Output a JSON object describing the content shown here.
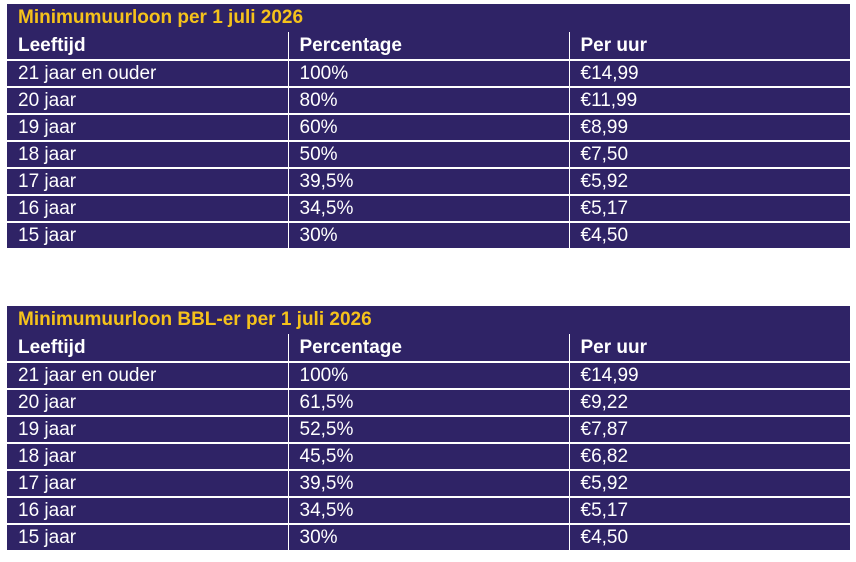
{
  "tables": [
    {
      "title": "Minimumuurloon per 1 juli 2026",
      "headers": [
        "Leeftijd",
        "Percentage",
        "Per uur"
      ],
      "rows": [
        [
          "21 jaar en ouder",
          "100%",
          "€14,99"
        ],
        [
          "20 jaar",
          "80%",
          "€11,99"
        ],
        [
          "19 jaar",
          "60%",
          "€8,99"
        ],
        [
          "18 jaar",
          "50%",
          "€7,50"
        ],
        [
          "17 jaar",
          "39,5%",
          "€5,92"
        ],
        [
          "16 jaar",
          "34,5%",
          "€5,17"
        ],
        [
          "15 jaar",
          "30%",
          "€4,50"
        ]
      ]
    },
    {
      "title": "Minimumuurloon BBL-er per 1 juli 2026",
      "headers": [
        "Leeftijd",
        "Percentage",
        "Per uur"
      ],
      "rows": [
        [
          "21 jaar en ouder",
          "100%",
          "€14,99"
        ],
        [
          "20 jaar",
          "61,5%",
          "€9,22"
        ],
        [
          "19 jaar",
          "52,5%",
          "€7,87"
        ],
        [
          "18 jaar",
          "45,5%",
          "€6,82"
        ],
        [
          "17 jaar",
          "39,5%",
          "€5,92"
        ],
        [
          "16 jaar",
          "34,5%",
          "€5,17"
        ],
        [
          "15 jaar",
          "30%",
          "€4,50"
        ]
      ]
    }
  ],
  "colors": {
    "background": "#2f2366",
    "title": "#f5c21b",
    "text": "#ffffff"
  }
}
